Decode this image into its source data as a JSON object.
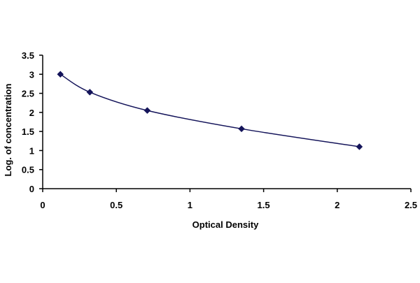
{
  "chart_data": {
    "type": "line",
    "title": "",
    "xlabel": "Optical Density",
    "ylabel": "Log. of concentration",
    "xlim": [
      0,
      2.5
    ],
    "ylim": [
      0,
      3.5
    ],
    "x_ticks": [
      0,
      0.5,
      1,
      1.5,
      2,
      2.5
    ],
    "x_tick_labels": [
      "0",
      "0.5",
      "1",
      "1.5",
      "2",
      "2.5"
    ],
    "y_ticks": [
      0,
      0.5,
      1,
      1.5,
      2,
      2.5,
      3,
      3.5
    ],
    "y_tick_labels": [
      "0",
      "0.5",
      "1",
      "1.5",
      "2",
      "2.5",
      "3",
      "3.5"
    ],
    "grid": false,
    "legend": "none",
    "smooth": true,
    "series": [
      {
        "x": [
          0.12,
          0.32,
          0.71,
          1.35,
          2.15
        ],
        "y": [
          3.0,
          2.53,
          2.05,
          1.57,
          1.1
        ],
        "color": "#14145a",
        "marker": "diamond"
      }
    ]
  }
}
